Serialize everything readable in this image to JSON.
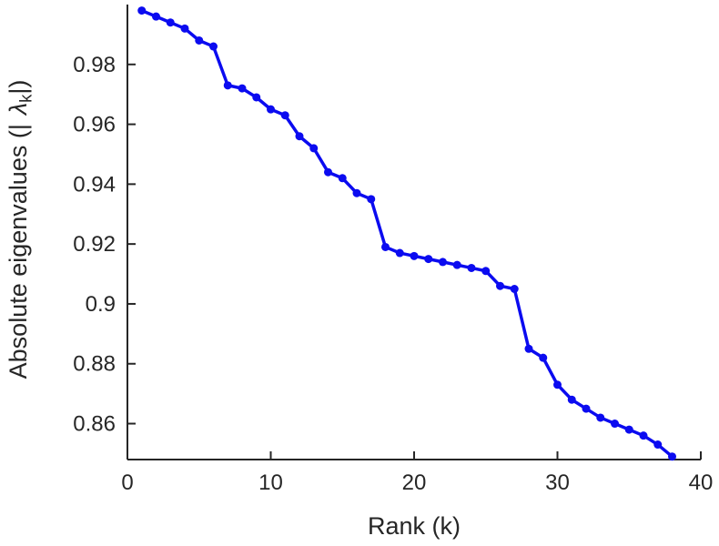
{
  "figure": {
    "background": "#ffffff"
  },
  "chart_data": {
    "type": "line",
    "title": "",
    "xlabel": "Rank (k)",
    "ylabel_parts": {
      "prefix": "Absolute eigenvalues (|",
      "symbol": "λ",
      "subscript": "k",
      "suffix": "|)"
    },
    "x": [
      1,
      2,
      3,
      4,
      5,
      6,
      7,
      8,
      9,
      10,
      11,
      12,
      13,
      14,
      15,
      16,
      17,
      18,
      19,
      20,
      21,
      22,
      23,
      24,
      25,
      26,
      27,
      28,
      29,
      30,
      31,
      32,
      33,
      34,
      35,
      36,
      37,
      38
    ],
    "values": [
      0.998,
      0.996,
      0.994,
      0.992,
      0.988,
      0.986,
      0.973,
      0.972,
      0.969,
      0.965,
      0.963,
      0.956,
      0.952,
      0.944,
      0.942,
      0.937,
      0.935,
      0.919,
      0.917,
      0.916,
      0.915,
      0.914,
      0.913,
      0.912,
      0.911,
      0.906,
      0.905,
      0.885,
      0.882,
      0.873,
      0.868,
      0.865,
      0.862,
      0.86,
      0.858,
      0.856,
      0.853,
      0.849
    ],
    "xlim": [
      0,
      40
    ],
    "ylim": [
      0.848,
      1.0
    ],
    "xticks": {
      "values": [
        0,
        10,
        20,
        30,
        40
      ],
      "labels": [
        "0",
        "10",
        "20",
        "30",
        "40"
      ]
    },
    "yticks": {
      "values": [
        0.86,
        0.88,
        0.9,
        0.92,
        0.94,
        0.96,
        0.98
      ],
      "labels": [
        "0.86",
        "0.88",
        "0.9",
        "0.92",
        "0.94",
        "0.96",
        "0.98"
      ]
    },
    "grid": false,
    "legend": "none",
    "line_color": "#0b0bf0",
    "axis_color": "#262626",
    "marker": "circle"
  }
}
